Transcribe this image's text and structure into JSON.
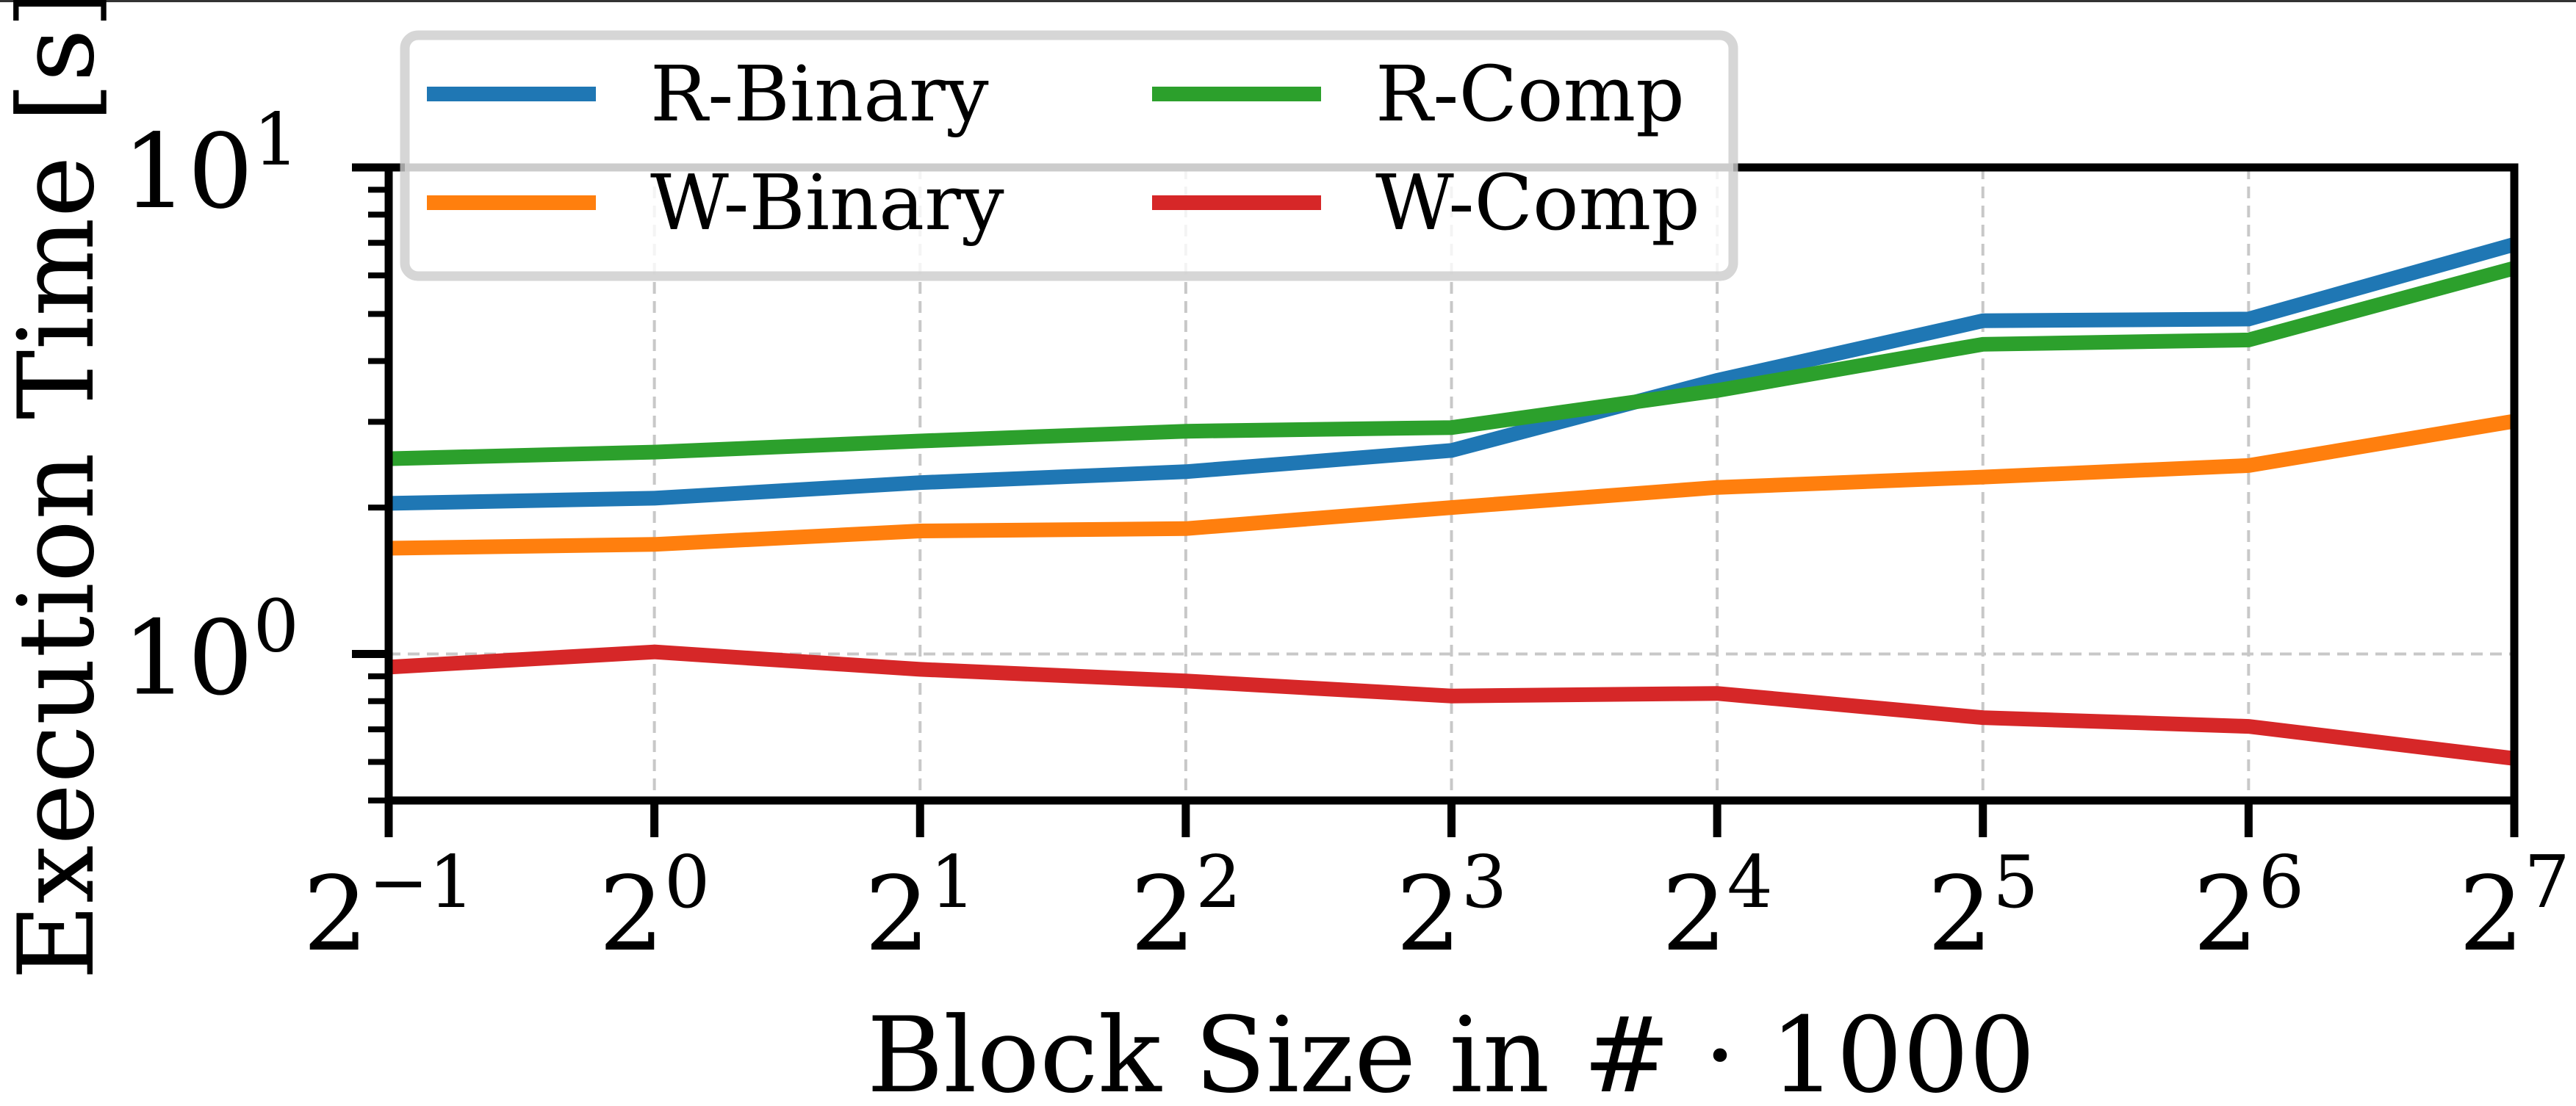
{
  "chart_data": {
    "type": "line",
    "title": "",
    "xlabel": "Block Size in # · 1000",
    "ylabel": "Execution Time [s]",
    "xscale": "log2",
    "yscale": "log10",
    "x": [
      -1,
      0,
      1,
      2,
      3,
      4,
      5,
      6,
      7
    ],
    "x_tick_labels": [
      {
        "base": "2",
        "exp": "−1"
      },
      {
        "base": "2",
        "exp": "0"
      },
      {
        "base": "2",
        "exp": "1"
      },
      {
        "base": "2",
        "exp": "2"
      },
      {
        "base": "2",
        "exp": "3"
      },
      {
        "base": "2",
        "exp": "4"
      },
      {
        "base": "2",
        "exp": "5"
      },
      {
        "base": "2",
        "exp": "6"
      },
      {
        "base": "2",
        "exp": "7"
      }
    ],
    "y_ticks": [
      {
        "value": 1,
        "base": "10",
        "exp": "0"
      },
      {
        "value": 10,
        "base": "10",
        "exp": "1"
      }
    ],
    "y_minor_ticks": [
      0.5,
      0.6,
      0.7,
      0.8,
      0.9,
      2,
      3,
      4,
      5,
      6,
      7,
      8,
      9
    ],
    "xlim": [
      -1,
      7
    ],
    "ylim": [
      0.5,
      10
    ],
    "grid": true,
    "legend": {
      "placement": "top-left",
      "columns": 2
    },
    "series": [
      {
        "name": "R-Binary",
        "color": "#1f77b4",
        "values": [
          2.04,
          2.09,
          2.25,
          2.37,
          2.62,
          3.65,
          4.84,
          4.88,
          6.95
        ]
      },
      {
        "name": "W-Binary",
        "color": "#ff7f0e",
        "values": [
          1.65,
          1.68,
          1.79,
          1.81,
          2.0,
          2.2,
          2.31,
          2.44,
          3.01
        ]
      },
      {
        "name": "R-Comp",
        "color": "#2ca02c",
        "values": [
          2.52,
          2.6,
          2.74,
          2.87,
          2.92,
          3.48,
          4.33,
          4.42,
          6.21
        ]
      },
      {
        "name": "W-Comp",
        "color": "#d62728",
        "values": [
          0.94,
          1.01,
          0.93,
          0.88,
          0.82,
          0.83,
          0.74,
          0.71,
          0.61
        ]
      }
    ]
  }
}
